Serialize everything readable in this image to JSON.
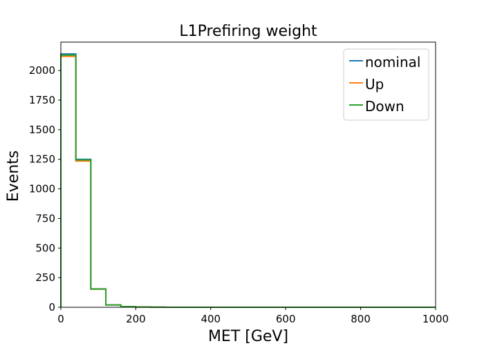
{
  "chart_data": {
    "type": "line",
    "drawstyle": "steps",
    "title": "L1Prefiring weight",
    "xlabel": "MET [GeV]",
    "ylabel": "Events",
    "xlim": [
      0,
      1000
    ],
    "ylim": [
      0,
      2240
    ],
    "x_ticks": [
      0,
      200,
      400,
      600,
      800,
      1000
    ],
    "y_ticks": [
      0,
      250,
      500,
      750,
      1000,
      1250,
      1500,
      1750,
      2000
    ],
    "bin_edges": [
      0,
      40,
      80,
      120,
      160,
      200,
      240,
      280,
      320,
      360,
      400,
      440,
      480,
      520,
      560,
      600,
      640,
      680,
      720,
      760,
      800,
      840,
      880,
      920,
      960,
      1000
    ],
    "grid": false,
    "legend_position": "top-right",
    "series": [
      {
        "name": "nominal",
        "color": "#1f77b4",
        "values": [
          2140,
          1250,
          155,
          20,
          6,
          2,
          1,
          0,
          0,
          0,
          0,
          0,
          0,
          0,
          0,
          0,
          0,
          0,
          0,
          0,
          0,
          0,
          0,
          0,
          0
        ]
      },
      {
        "name": "Up",
        "color": "#ff7f0e",
        "values": [
          2120,
          1235,
          153,
          20,
          6,
          2,
          1,
          0,
          0,
          0,
          0,
          0,
          0,
          0,
          0,
          0,
          0,
          0,
          0,
          0,
          0,
          0,
          0,
          0,
          0
        ]
      },
      {
        "name": "Down",
        "color": "#2ca02c",
        "values": [
          2130,
          1245,
          154,
          20,
          6,
          2,
          1,
          0,
          0,
          0,
          0,
          0,
          0,
          0,
          0,
          0,
          0,
          0,
          0,
          0,
          0,
          0,
          0,
          0,
          0
        ]
      }
    ]
  }
}
